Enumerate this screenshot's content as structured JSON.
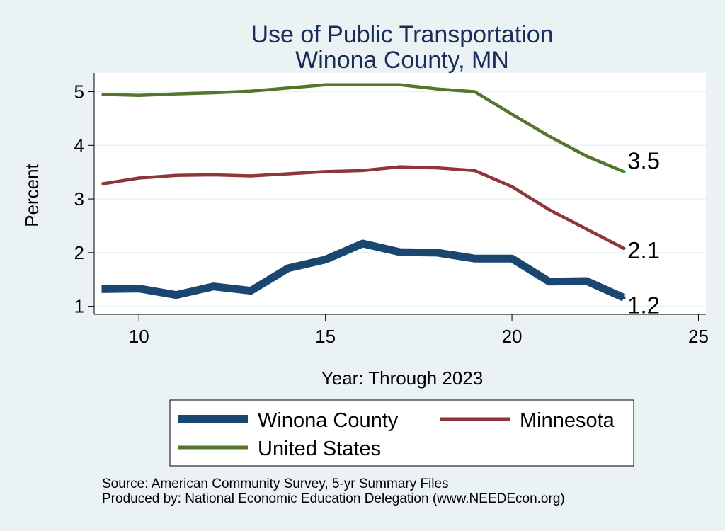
{
  "chart_data": {
    "type": "line",
    "title": "Use of Public Transportation",
    "subtitle": "Winona County, MN",
    "xlabel": "Year: Through 2023",
    "ylabel": "Percent",
    "xlim": [
      8.8,
      25.2
    ],
    "ylim": [
      0.85,
      5.35
    ],
    "xticks": [
      10,
      15,
      20,
      25
    ],
    "yticks": [
      1,
      2,
      3,
      4,
      5
    ],
    "grid": true,
    "x": [
      9,
      10,
      11,
      12,
      13,
      14,
      15,
      16,
      17,
      18,
      19,
      20,
      21,
      22,
      23
    ],
    "series": [
      {
        "name": "Winona County",
        "color": "#1a476f",
        "values": [
          1.32,
          1.33,
          1.21,
          1.37,
          1.29,
          1.71,
          1.87,
          2.17,
          2.01,
          2.0,
          1.89,
          1.89,
          1.46,
          1.47,
          1.16
        ],
        "end_label": "1.2"
      },
      {
        "name": "Minnesota",
        "color": "#90353b",
        "values": [
          3.28,
          3.39,
          3.44,
          3.45,
          3.43,
          3.47,
          3.51,
          3.53,
          3.6,
          3.58,
          3.53,
          3.23,
          2.8,
          2.44,
          2.08
        ],
        "end_label": "2.1"
      },
      {
        "name": "United States",
        "color": "#55752f",
        "values": [
          4.95,
          4.93,
          4.96,
          4.98,
          5.01,
          5.07,
          5.13,
          5.13,
          5.13,
          5.05,
          5.0,
          4.58,
          4.17,
          3.8,
          3.51
        ],
        "end_label": "3.5"
      }
    ],
    "legend": {
      "position": "bottom",
      "entries": [
        "Winona County",
        "Minnesota",
        "United States"
      ]
    },
    "notes": [
      "Source: American Community Survey, 5-yr Summary Files",
      "Produced by: National Economic Education Delegation (www.NEEDEcon.org)"
    ]
  }
}
